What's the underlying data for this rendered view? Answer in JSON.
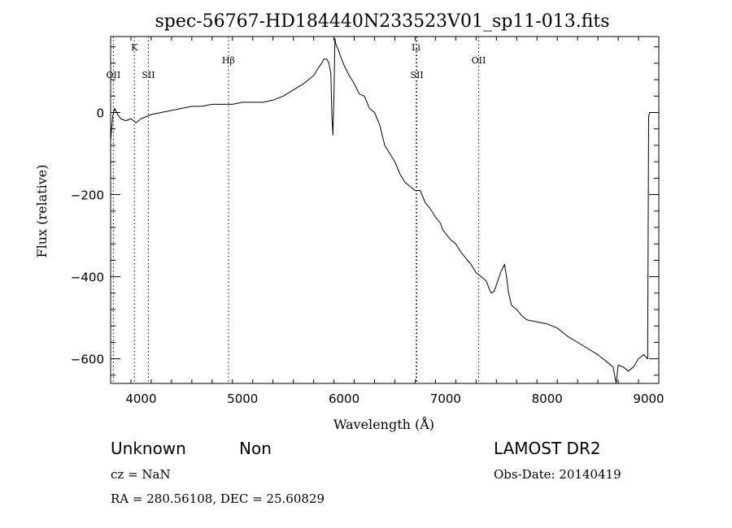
{
  "chart_data": {
    "type": "line",
    "title": "spec-56767-HD184440N233523V01_sp11-013.fits",
    "xlabel": "Wavelength (Å)",
    "ylabel": "Flux (relative)",
    "xlim": [
      3700,
      9100
    ],
    "ylim": [
      -660,
      185
    ],
    "x_ticks": [
      4000,
      5000,
      6000,
      7000,
      8000,
      9000
    ],
    "y_ticks": [
      0,
      -200,
      -400,
      -600
    ],
    "x_tick_labels": [
      "4000",
      "5000",
      "6000",
      "7000",
      "8000",
      "9000"
    ],
    "y_tick_labels": [
      "0",
      "−200",
      "−400",
      "−600"
    ],
    "spectral_lines": [
      {
        "label": "OII",
        "x": 3727,
        "label_row": "lower",
        "color": "#000000"
      },
      {
        "label": "K",
        "x": 3934,
        "label_row": "upper",
        "color": "#000000"
      },
      {
        "label": "SII",
        "x": 4072,
        "label_row": "lower",
        "color": "#000000"
      },
      {
        "label": "Hβ",
        "x": 4861,
        "label_row": "middle",
        "color": "#000000"
      },
      {
        "label": "Li",
        "x": 6708,
        "label_row": "upper",
        "color": "#ff0000"
      },
      {
        "label": "SII",
        "x": 6717,
        "label_row": "lower",
        "color": "#000000"
      },
      {
        "label": "OII",
        "x": 7325,
        "label_row": "middle",
        "color": "#000000"
      }
    ],
    "series": [
      {
        "x": [
          3700,
          3720,
          3740,
          3770,
          3800,
          3850,
          3900,
          3950,
          4000,
          4100,
          4200,
          4300,
          4400,
          4500,
          4600,
          4700,
          4800,
          4900,
          5000,
          5100,
          5200,
          5300,
          5400,
          5500,
          5600,
          5650,
          5700,
          5750,
          5780,
          5800,
          5830,
          5850,
          5870,
          5880,
          5890,
          5900,
          5910,
          5920,
          5940,
          5960,
          6000,
          6050,
          6100,
          6150,
          6200,
          6250,
          6300,
          6350,
          6400,
          6450,
          6500,
          6550,
          6600,
          6650,
          6700,
          6750,
          6800,
          6850,
          6900,
          6950,
          6970,
          7000,
          7050,
          7100,
          7150,
          7200,
          7250,
          7300,
          7350,
          7400,
          7430,
          7450,
          7480,
          7500,
          7550,
          7580,
          7600,
          7620,
          7650,
          7700,
          7750,
          7800,
          7900,
          8000,
          8100,
          8200,
          8300,
          8400,
          8500,
          8600,
          8650,
          8680,
          8700,
          8750,
          8800,
          8850,
          8900,
          8950,
          8990,
          9000,
          9010
        ],
        "y": [
          -70,
          -10,
          10,
          -5,
          -15,
          -20,
          -15,
          -25,
          -15,
          -5,
          0,
          5,
          10,
          15,
          15,
          20,
          20,
          20,
          25,
          25,
          25,
          30,
          40,
          55,
          70,
          80,
          90,
          110,
          120,
          130,
          130,
          120,
          95,
          -10,
          -55,
          40,
          180,
          165,
          155,
          140,
          115,
          90,
          70,
          45,
          40,
          10,
          0,
          -30,
          -80,
          -100,
          -120,
          -150,
          -170,
          -180,
          -190,
          -190,
          -220,
          -235,
          -255,
          -270,
          -285,
          -295,
          -310,
          -320,
          -340,
          -355,
          -370,
          -390,
          -400,
          -410,
          -430,
          -440,
          -435,
          -420,
          -385,
          -370,
          -400,
          -440,
          -470,
          -480,
          -495,
          -505,
          -510,
          -515,
          -525,
          -545,
          -560,
          -575,
          -590,
          -610,
          -620,
          -660,
          -615,
          -620,
          -630,
          -620,
          -600,
          -590,
          -600,
          -10,
          0
        ]
      }
    ]
  },
  "info": {
    "class_text": "Unknown",
    "subclass_text": "Non",
    "survey_text": "LAMOST DR2",
    "cz_text": "cz = NaN",
    "obs_date_text": "Obs-Date: 20140419",
    "radec_text": "RA = 280.56108, DEC =  25.60829"
  }
}
